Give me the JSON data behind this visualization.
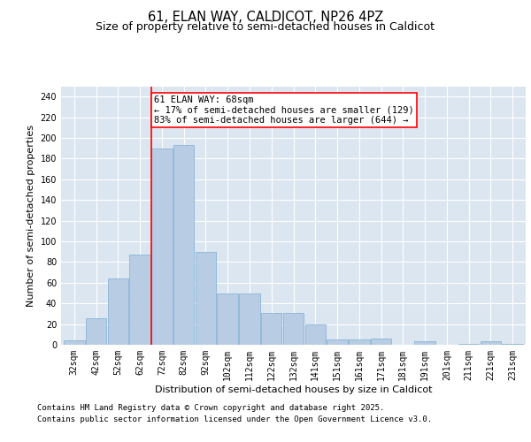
{
  "title_line1": "61, ELAN WAY, CALDICOT, NP26 4PZ",
  "title_line2": "Size of property relative to semi-detached houses in Caldicot",
  "xlabel": "Distribution of semi-detached houses by size in Caldicot",
  "ylabel": "Number of semi-detached properties",
  "categories": [
    "32sqm",
    "42sqm",
    "52sqm",
    "62sqm",
    "72sqm",
    "82sqm",
    "92sqm",
    "102sqm",
    "112sqm",
    "122sqm",
    "132sqm",
    "141sqm",
    "151sqm",
    "161sqm",
    "171sqm",
    "181sqm",
    "191sqm",
    "201sqm",
    "211sqm",
    "221sqm",
    "231sqm"
  ],
  "values": [
    4,
    26,
    64,
    87,
    190,
    193,
    90,
    50,
    50,
    31,
    31,
    20,
    5,
    5,
    6,
    0,
    3,
    0,
    1,
    3,
    1
  ],
  "bar_color": "#b8cce4",
  "bar_edge_color": "#7bafd4",
  "background_color": "#dce6f1",
  "vline_x": 3.5,
  "vline_color": "red",
  "annotation_text": "61 ELAN WAY: 68sqm\n← 17% of semi-detached houses are smaller (129)\n83% of semi-detached houses are larger (644) →",
  "annotation_box_color": "white",
  "annotation_box_edge": "red",
  "ylim": [
    0,
    250
  ],
  "yticks": [
    0,
    20,
    40,
    60,
    80,
    100,
    120,
    140,
    160,
    180,
    200,
    220,
    240
  ],
  "footer_line1": "Contains HM Land Registry data © Crown copyright and database right 2025.",
  "footer_line2": "Contains public sector information licensed under the Open Government Licence v3.0.",
  "title_fontsize": 10.5,
  "subtitle_fontsize": 9,
  "axis_label_fontsize": 8,
  "tick_fontsize": 7,
  "footer_fontsize": 6.5,
  "annotation_fontsize": 7.5
}
